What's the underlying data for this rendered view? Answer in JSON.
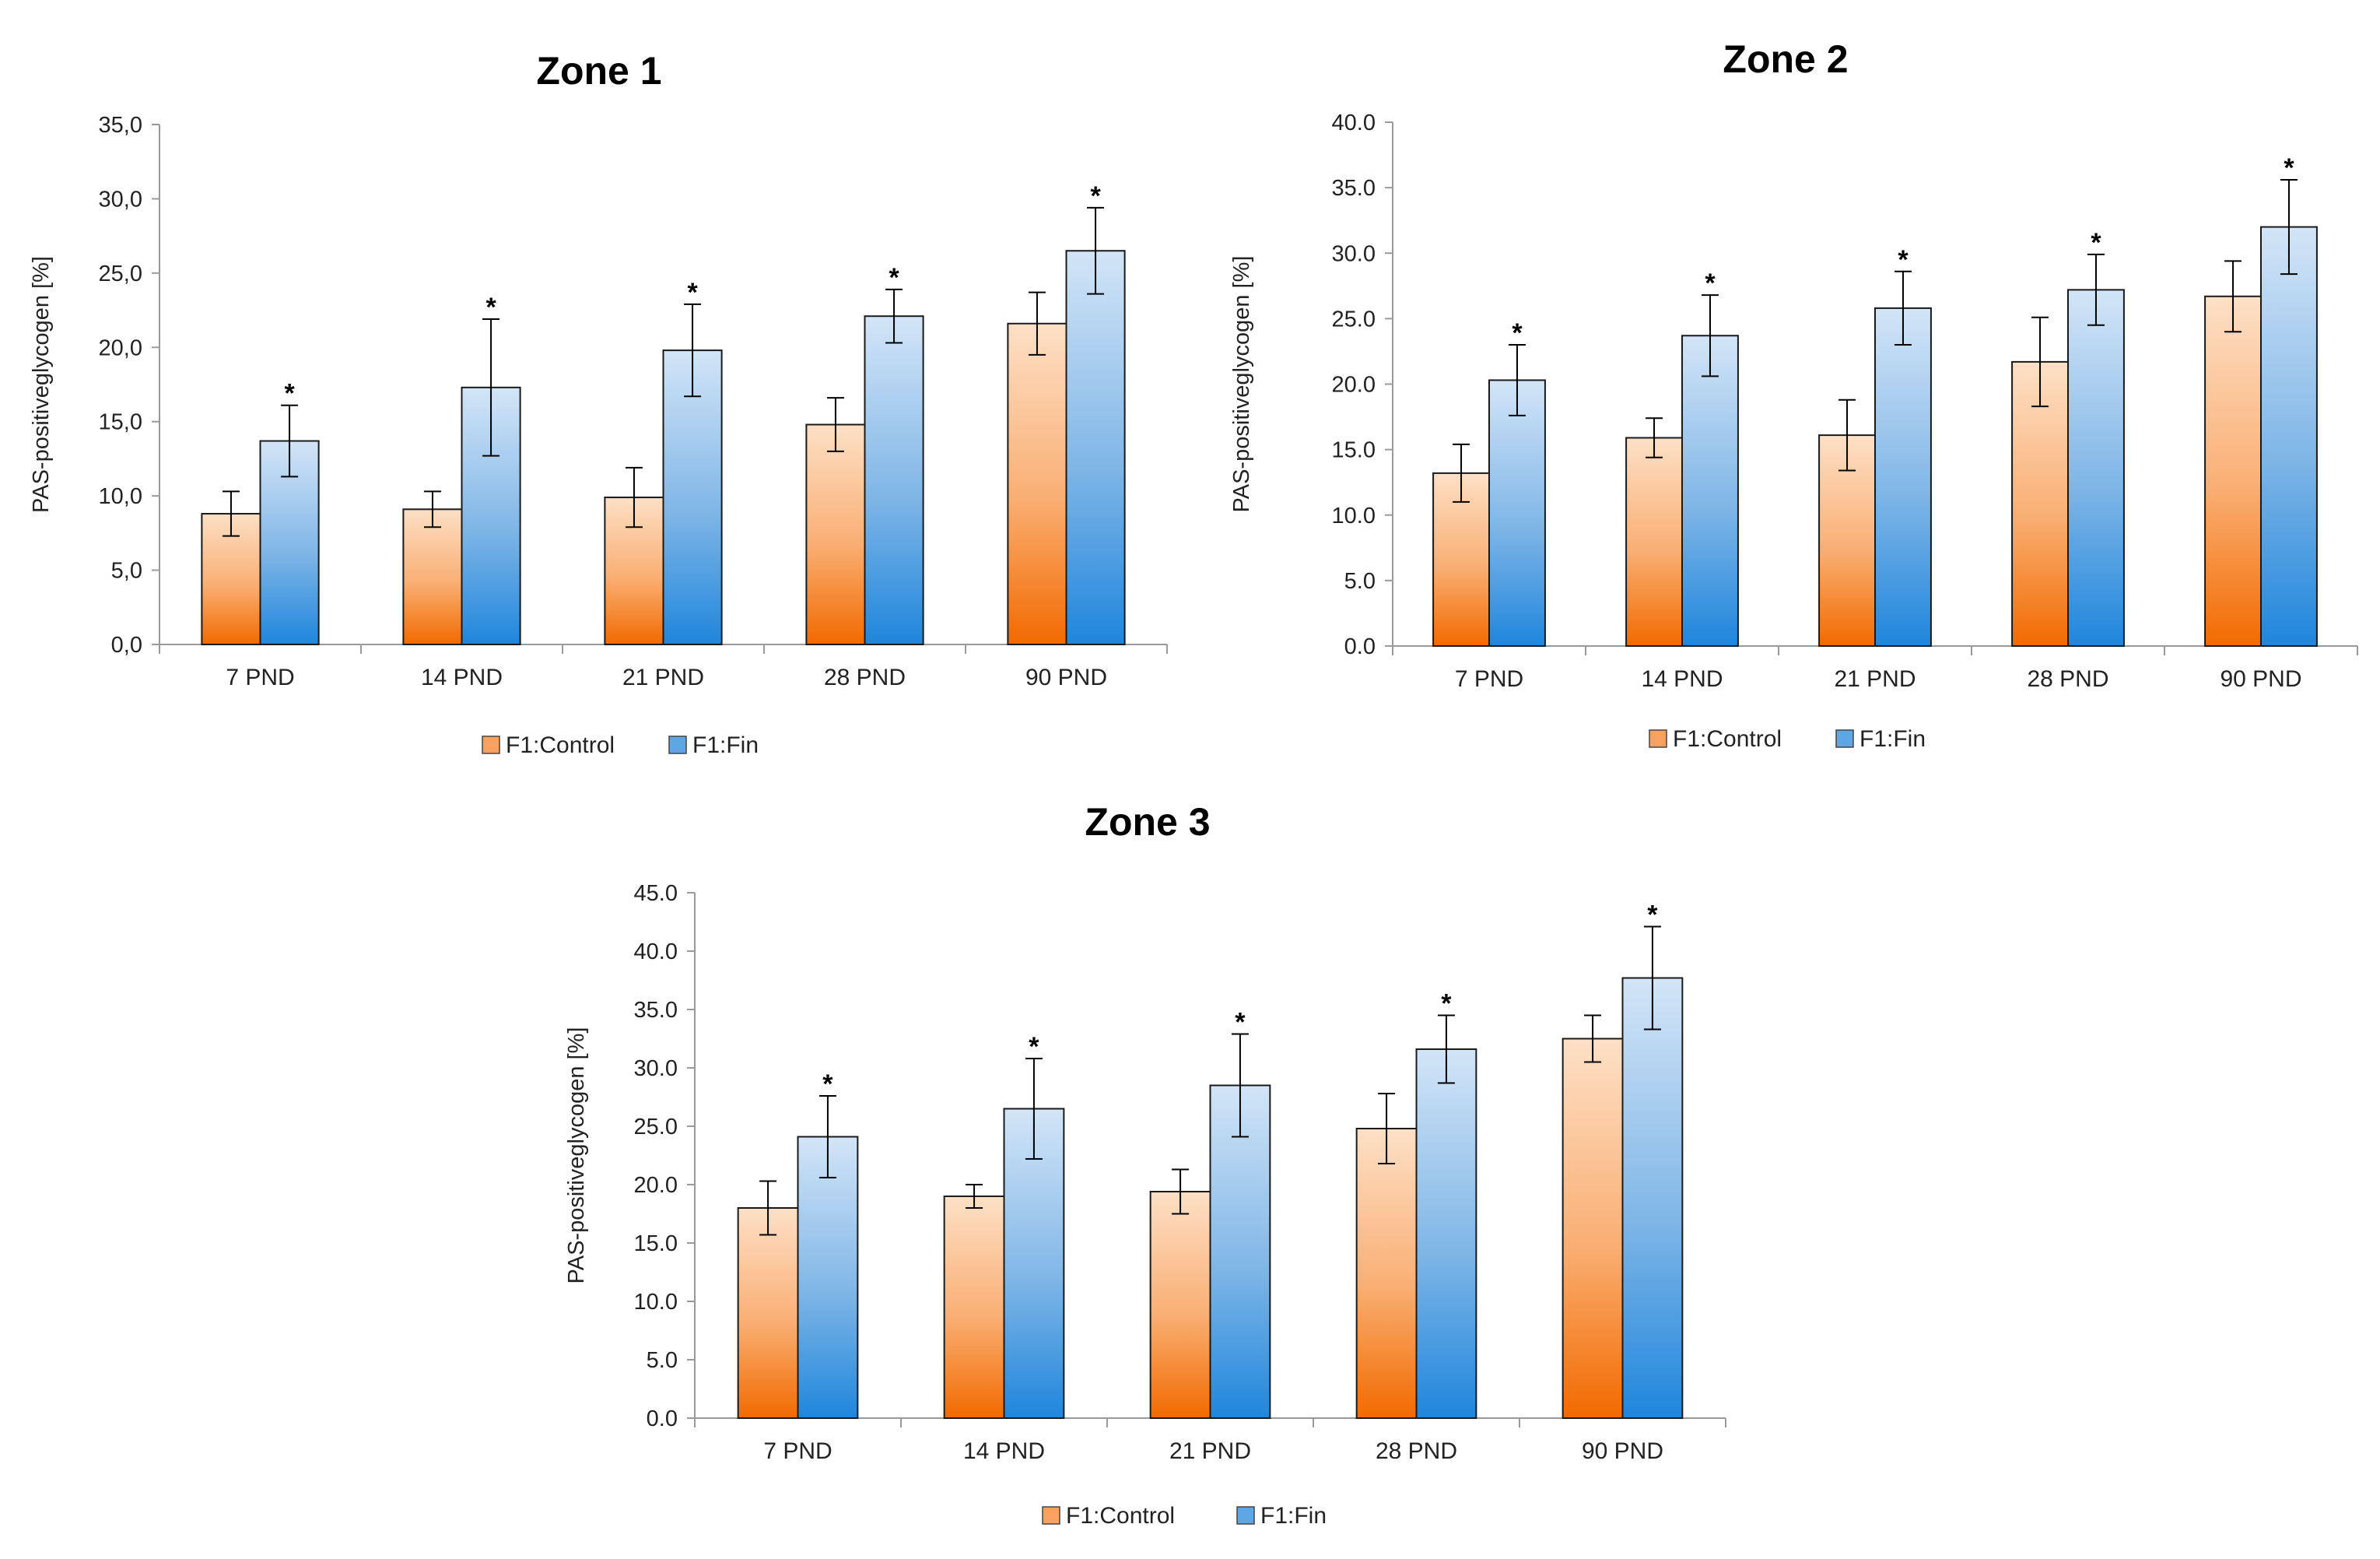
{
  "chart_data": [
    {
      "type": "bar",
      "title": "Zone 1",
      "xlabel": "",
      "ylabel": "PAS-positiveglycogen [%]",
      "ylim": [
        0,
        35
      ],
      "ytick_step": 5,
      "ytick_labels": [
        "0,0",
        "5,0",
        "10,0",
        "15,0",
        "20,0",
        "25,0",
        "30,0",
        "35,0"
      ],
      "categories": [
        "7 PND",
        "14 PND",
        "21 PND",
        "28 PND",
        "90 PND"
      ],
      "series": [
        {
          "name": "F1:Control",
          "values": [
            8.8,
            9.1,
            9.9,
            14.8,
            21.6
          ],
          "errors": [
            1.5,
            1.2,
            2.0,
            1.8,
            2.1
          ]
        },
        {
          "name": "F1:Fin",
          "values": [
            13.7,
            17.3,
            19.8,
            22.1,
            26.5
          ],
          "errors": [
            2.4,
            4.6,
            3.1,
            1.8,
            2.9
          ],
          "annotations": [
            "*",
            "*",
            "*",
            "*",
            "*"
          ]
        }
      ],
      "legend": [
        "F1:Control",
        "F1:Fin"
      ],
      "legend_position": "bottom",
      "grid": false
    },
    {
      "type": "bar",
      "title": "Zone 2",
      "xlabel": "",
      "ylabel": "PAS-positiveglycogen [%]",
      "ylim": [
        0,
        40
      ],
      "ytick_step": 5,
      "ytick_labels": [
        "0.0",
        "5.0",
        "10.0",
        "15.0",
        "20.0",
        "25.0",
        "30.0",
        "35.0",
        "40.0"
      ],
      "categories": [
        "7 PND",
        "14 PND",
        "21 PND",
        "28 PND",
        "90 PND"
      ],
      "series": [
        {
          "name": "F1:Control",
          "values": [
            13.2,
            15.9,
            16.1,
            21.7,
            26.7
          ],
          "errors": [
            2.2,
            1.5,
            2.7,
            3.4,
            2.7
          ]
        },
        {
          "name": "F1:Fin",
          "values": [
            20.3,
            23.7,
            25.8,
            27.2,
            32.0
          ],
          "errors": [
            2.7,
            3.1,
            2.8,
            2.7,
            3.6
          ],
          "annotations": [
            "*",
            "*",
            "*",
            "*",
            "*"
          ]
        }
      ],
      "legend": [
        "F1:Control",
        "F1:Fin"
      ],
      "legend_position": "bottom",
      "grid": false
    },
    {
      "type": "bar",
      "title": "Zone 3",
      "xlabel": "",
      "ylabel": "PAS-positiveglycogen [%]",
      "ylim": [
        0,
        45
      ],
      "ytick_step": 5,
      "ytick_labels": [
        "0.0",
        "5.0",
        "10.0",
        "15.0",
        "20.0",
        "25.0",
        "30.0",
        "35.0",
        "40.0",
        "45.0"
      ],
      "categories": [
        "7 PND",
        "14 PND",
        "21 PND",
        "28 PND",
        "90 PND"
      ],
      "series": [
        {
          "name": "F1:Control",
          "values": [
            18.0,
            19.0,
            19.4,
            24.8,
            32.5
          ],
          "errors": [
            2.3,
            1.0,
            1.9,
            3.0,
            2.0
          ]
        },
        {
          "name": "F1:Fin",
          "values": [
            24.1,
            26.5,
            28.5,
            31.6,
            37.7
          ],
          "errors": [
            3.5,
            4.3,
            4.4,
            2.9,
            4.4
          ],
          "annotations": [
            "*",
            "*",
            "*",
            "*",
            "*"
          ]
        }
      ],
      "legend": [
        "F1:Control",
        "F1:Fin"
      ],
      "legend_position": "bottom",
      "grid": false
    }
  ]
}
